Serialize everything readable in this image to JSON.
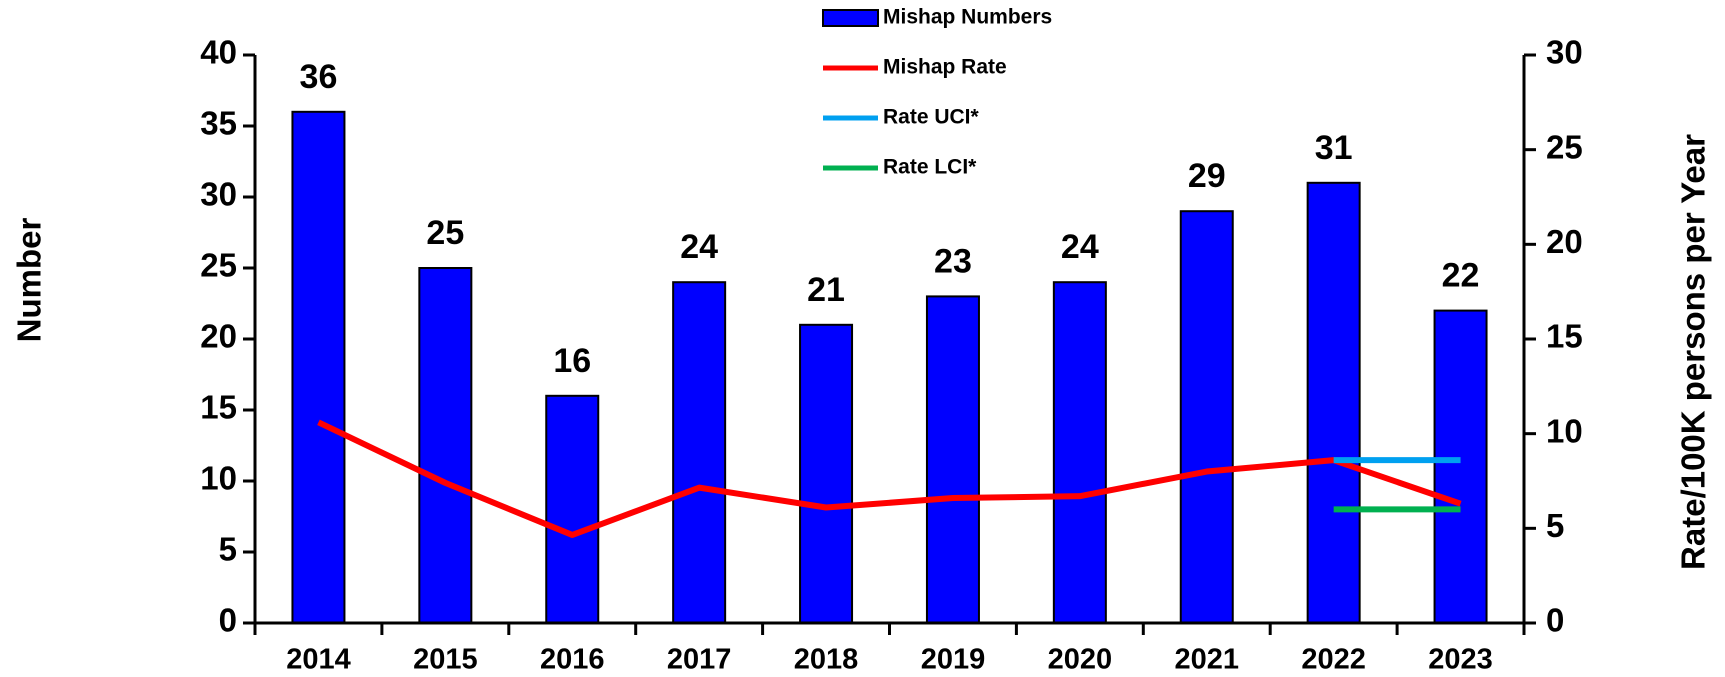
{
  "chart_data": {
    "type": "bar",
    "categories": [
      "2014",
      "2015",
      "2016",
      "2017",
      "2018",
      "2019",
      "2020",
      "2021",
      "2022",
      "2023"
    ],
    "series": [
      {
        "name": "Mishap Numbers",
        "type": "bar",
        "color": "#0000ff",
        "values": [
          36,
          25,
          16,
          24,
          21,
          23,
          24,
          29,
          31,
          22
        ]
      },
      {
        "name": "Mishap Rate",
        "type": "line",
        "axis": "y2",
        "color": "#ff0000",
        "values": [
          10.6,
          7.4,
          4.65,
          7.15,
          6.1,
          6.6,
          6.7,
          8.0,
          8.6,
          6.3
        ]
      },
      {
        "name": "Rate UCI*",
        "type": "line",
        "axis": "y2",
        "color": "#00a0f0",
        "values": [
          null,
          null,
          null,
          null,
          null,
          null,
          null,
          null,
          8.6,
          8.6
        ]
      },
      {
        "name": "Rate LCI*",
        "type": "line",
        "axis": "y2",
        "color": "#00b050",
        "values": [
          null,
          null,
          null,
          null,
          null,
          null,
          null,
          null,
          6.0,
          6.0
        ]
      }
    ],
    "ylabel": "Number",
    "y2label": "Rate/100K persons per Year",
    "ylim": [
      0,
      40
    ],
    "yticks": [
      0,
      5,
      10,
      15,
      20,
      25,
      30,
      35,
      40
    ],
    "y2lim": [
      0,
      30
    ],
    "y2ticks": [
      0,
      5,
      10,
      15,
      20,
      25,
      30
    ],
    "legend": "top"
  }
}
